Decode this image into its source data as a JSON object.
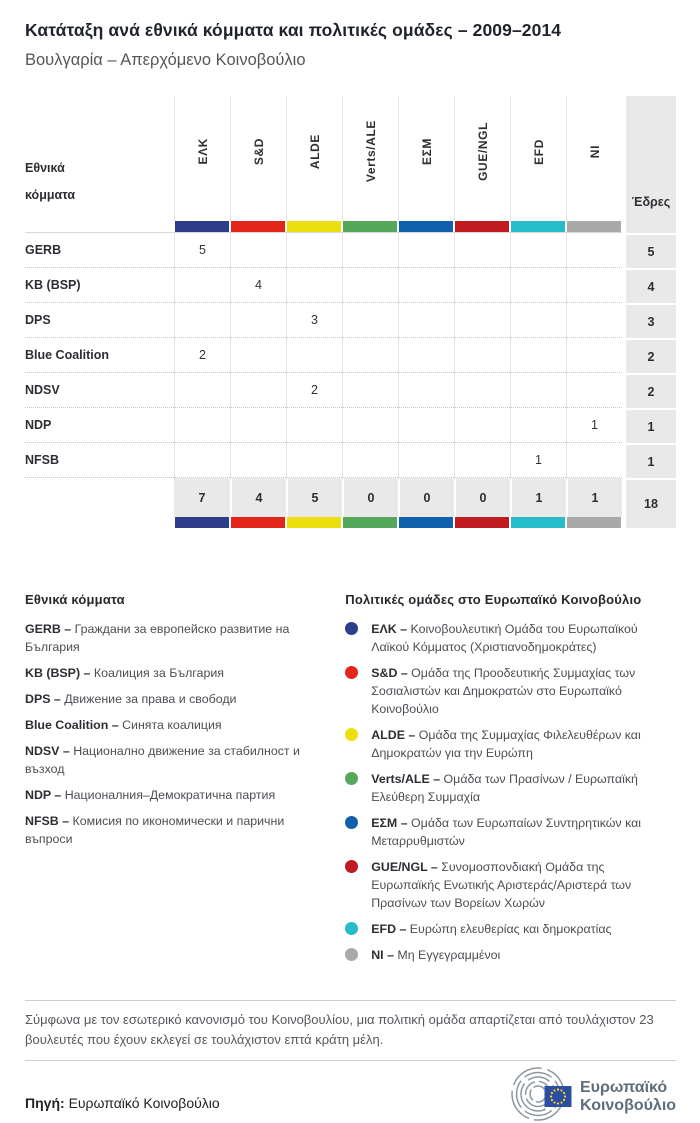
{
  "page": {
    "title": "Κατάταξη ανά εθνικά κόμματα και πολιτικές ομάδες – 2009–2014",
    "subtitle": "Βουλγαρία – Απερχόμενο Κοινοβούλιο"
  },
  "chart_data": {
    "type": "table",
    "title": "Κατάταξη ανά εθνικά κόμματα και πολιτικές ομάδες – 2009–2014",
    "subtitle": "Βουλγαρία – Απερχόμενο Κοινοβούλιο",
    "columns": [
      "ΕΛΚ",
      "S&D",
      "ALDE",
      "Verts/ALE",
      "ΕΣΜ",
      "GUE/NGL",
      "EFD",
      "NI"
    ],
    "column_colors": [
      "#2d3d8b",
      "#e4251c",
      "#ecdf0e",
      "#55a75a",
      "#1160ab",
      "#bf1b20",
      "#27bcca",
      "#a9a9a9"
    ],
    "rows": [
      {
        "party": "GERB",
        "values": [
          5,
          null,
          null,
          null,
          null,
          null,
          null,
          null
        ],
        "total": 5
      },
      {
        "party": "KB (BSP)",
        "values": [
          null,
          4,
          null,
          null,
          null,
          null,
          null,
          null
        ],
        "total": 4
      },
      {
        "party": "DPS",
        "values": [
          null,
          null,
          3,
          null,
          null,
          null,
          null,
          null
        ],
        "total": 3
      },
      {
        "party": "Blue Coalition",
        "values": [
          2,
          null,
          null,
          null,
          null,
          null,
          null,
          null
        ],
        "total": 2
      },
      {
        "party": "NDSV",
        "values": [
          null,
          null,
          2,
          null,
          null,
          null,
          null,
          null
        ],
        "total": 2
      },
      {
        "party": "NDP",
        "values": [
          null,
          null,
          null,
          null,
          null,
          null,
          null,
          1
        ],
        "total": 1
      },
      {
        "party": "NFSB",
        "values": [
          null,
          null,
          null,
          null,
          null,
          null,
          1,
          null
        ],
        "total": 1
      }
    ],
    "column_totals": [
      7,
      4,
      5,
      0,
      0,
      0,
      1,
      1
    ],
    "grand_total": 18
  },
  "table_labels": {
    "national_parties_line1": "Εθνικά",
    "national_parties_line2": "κόμματα",
    "seats": "Έδρες"
  },
  "legend_parties": {
    "heading": "Εθνικά  κόμματα",
    "items": [
      {
        "abbr": "GERB –",
        "desc": "Граждани за европейско развитие на България"
      },
      {
        "abbr": "KB (BSP) –",
        "desc": "Коалиция за България"
      },
      {
        "abbr": "DPS –",
        "desc": "Движение за права и свободи"
      },
      {
        "abbr": "Blue Coalition –",
        "desc": "Синята коалиция"
      },
      {
        "abbr": "NDSV –",
        "desc": "Национално движение за стабилност и възход"
      },
      {
        "abbr": "NDP –",
        "desc": "Националния–Демократична партия"
      },
      {
        "abbr": "NFSB –",
        "desc": "Комисия по икономически и парични въпроси"
      }
    ]
  },
  "legend_groups": {
    "heading": "Πολιτικές ομάδες στο Ευρωπαϊκό Κοινοβούλιο",
    "items": [
      {
        "abbr": "ΕΛΚ –",
        "desc": "Κοινοβουλευτική Ομάδα του Ευρωπαϊκού Λαϊκού Κόμματος (Χριστιανοδημοκράτες)",
        "color": "#2d3d8b"
      },
      {
        "abbr": "S&D –",
        "desc": "Ομάδα της Προοδευτικής Συμμαχίας των Σοσιαλιστών και Δημοκρατών στο Ευρωπαϊκό Κοινοβούλιο",
        "color": "#e4251c"
      },
      {
        "abbr": "ALDE –",
        "desc": "Ομάδα της Συμμαχίας Φιλελευθέρων και Δημοκρατών για την Ευρώπη",
        "color": "#ecdf0e"
      },
      {
        "abbr": "Verts/ALE –",
        "desc": "Ομάδα των Πρασίνων / Ευρωπαϊκή Ελεύθερη Συμμαχία",
        "color": "#55a75a"
      },
      {
        "abbr": "ΕΣΜ –",
        "desc": "Ομάδα των Ευρωπαίων Συντηρητικών και Μεταρρυθμιστών",
        "color": "#1160ab"
      },
      {
        "abbr": "GUE/NGL –",
        "desc": "Συνομοσπονδιακή Ομάδα της Ευρωπαϊκής Ενωτικής Αριστεράς/Αριστερά των Πρασίνων των Βορείων Χωρών",
        "color": "#bf1b20"
      },
      {
        "abbr": "EFD –",
        "desc": "Ευρώπη ελευθερίας και δημοκρατίας",
        "color": "#27bcca"
      },
      {
        "abbr": "NI –",
        "desc": "Μη Εγγεγραμμένοι",
        "color": "#a9a9a9"
      }
    ]
  },
  "footnote": "Σύμφωνα με τον εσωτερικό κανονισμό του Κοινοβουλίου, μια πολιτική ομάδα απαρτίζεται από τουλάχιστον 23 βουλευτές που έχουν εκλεγεί σε τουλάχιστον επτά κράτη μέλη.",
  "source": {
    "label": "Πηγή:",
    "text": "Ευρωπαϊκό Κοινοβούλιο"
  },
  "logo": {
    "line1": "Ευρωπαϊκό",
    "line2": "Κοινοβούλιο"
  }
}
